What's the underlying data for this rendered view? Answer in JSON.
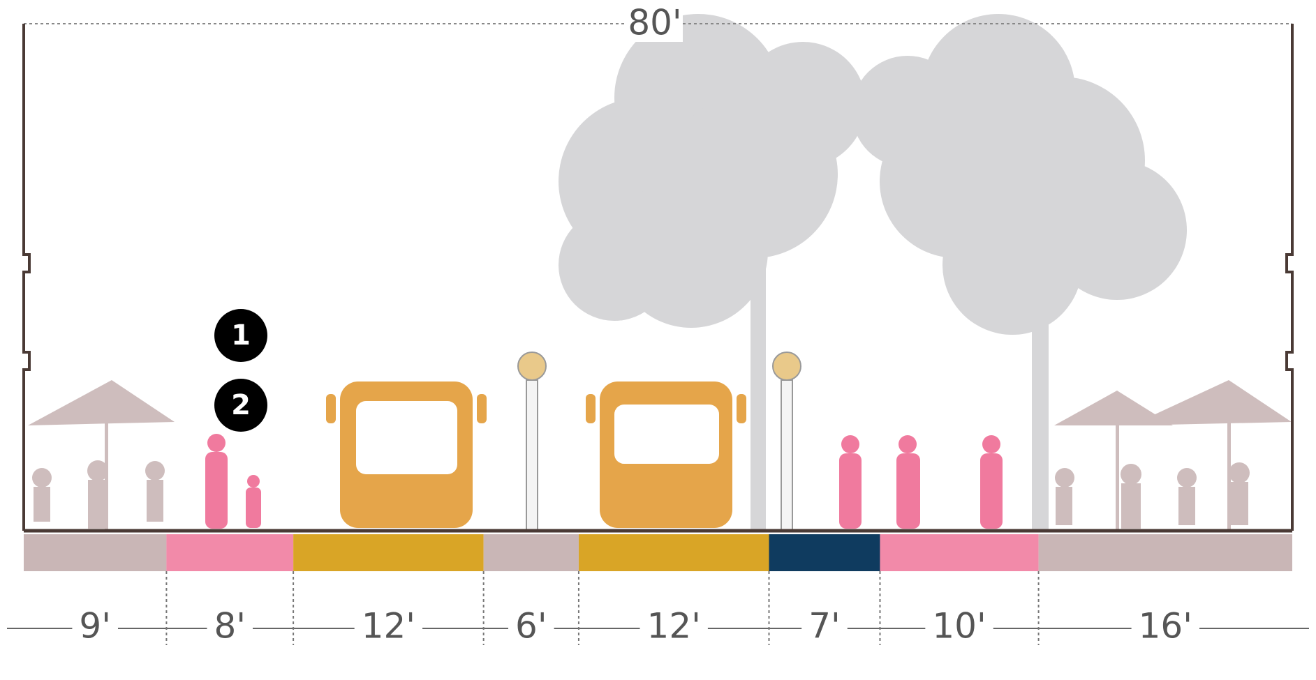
{
  "dimension_total": "80'",
  "markers": [
    "1",
    "2"
  ],
  "segments": [
    {
      "label": "9'",
      "color": "#c9b6b6"
    },
    {
      "label": "8'",
      "color": "#f28aa9"
    },
    {
      "label": "12'",
      "color": "#d9a526"
    },
    {
      "label": "6'",
      "color": "#c9b6b6"
    },
    {
      "label": "12'",
      "color": "#d9a526"
    },
    {
      "label": "7'",
      "color": "#0f3b5f"
    },
    {
      "label": "10'",
      "color": "#f28aa9"
    },
    {
      "label": "16'",
      "color": "#c9b6b6"
    }
  ]
}
